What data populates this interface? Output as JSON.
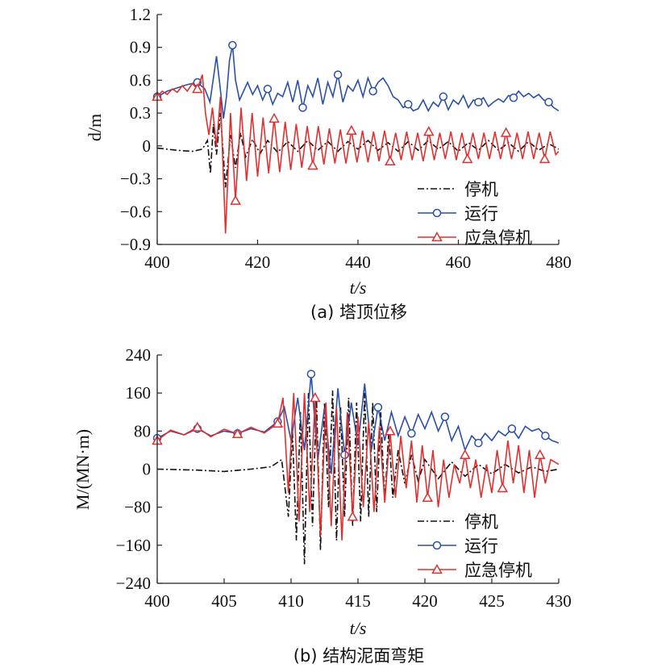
{
  "chart_data": [
    {
      "type": "line",
      "caption": "(a) 塔顶位移",
      "xlabel": "t/s",
      "ylabel": "d/m",
      "xlim": [
        400,
        480
      ],
      "ylim": [
        -0.9,
        1.2
      ],
      "xticks": [
        "400",
        "420",
        "440",
        "460",
        "480"
      ],
      "yticks": [
        "−0.9",
        "−0.6",
        "−0.3",
        "0",
        "0.3",
        "0.6",
        "0.9",
        "1.2"
      ],
      "legend_position": "bottom-right",
      "series": [
        {
          "name": "停机",
          "color": "#111111",
          "style": "dashdot",
          "marker": "none",
          "x": [
            400,
            404,
            407,
            409,
            410,
            410.6,
            411.2,
            411.8,
            412.6,
            413.6,
            414.6,
            415.6,
            416.6,
            417.6,
            419,
            420.5,
            422,
            424,
            426,
            428,
            430,
            432,
            434,
            436,
            438,
            440,
            442,
            444,
            446,
            448,
            450,
            452,
            454,
            456,
            458,
            460,
            462,
            464,
            466,
            468,
            470,
            472,
            474,
            476,
            478,
            480
          ],
          "y": [
            -0.02,
            -0.04,
            -0.05,
            -0.03,
            0.05,
            -0.25,
            0.2,
            -0.08,
            0.3,
            -0.38,
            0.1,
            -0.2,
            0.12,
            -0.1,
            0.06,
            -0.07,
            0.05,
            -0.06,
            0.04,
            -0.05,
            0.05,
            -0.04,
            0.04,
            -0.05,
            0.04,
            -0.03,
            0.05,
            -0.04,
            0.03,
            -0.05,
            0.04,
            -0.04,
            0.05,
            -0.03,
            0.04,
            -0.05,
            0.03,
            -0.04,
            0.05,
            -0.04,
            0.03,
            -0.05,
            0.04,
            -0.04,
            0.02,
            -0.03
          ]
        },
        {
          "name": "运行",
          "color": "#2a4fa8",
          "style": "solid",
          "marker": "circle",
          "x": [
            400,
            402,
            404,
            406,
            408,
            409.5,
            410.5,
            411.2,
            411.8,
            412.5,
            413.2,
            413.8,
            414.4,
            415,
            415.6,
            416.4,
            417.2,
            418,
            419,
            420,
            421,
            422,
            423,
            424,
            425,
            426,
            427,
            428,
            429,
            430,
            431,
            432,
            433,
            434,
            435,
            436,
            437,
            438,
            439,
            440,
            441,
            442,
            443,
            444,
            445,
            446,
            447,
            448,
            449,
            450,
            451,
            452,
            453,
            454,
            455,
            456,
            457,
            458,
            459,
            460,
            461,
            462,
            463,
            464,
            465,
            466,
            467,
            468,
            469,
            470,
            471,
            472,
            473,
            474,
            475,
            476,
            477,
            478,
            479,
            480
          ],
          "y": [
            0.45,
            0.5,
            0.53,
            0.56,
            0.58,
            0.52,
            0.4,
            0.62,
            0.82,
            0.55,
            0.25,
            0.45,
            0.78,
            0.92,
            0.6,
            0.42,
            0.5,
            0.58,
            0.47,
            0.55,
            0.42,
            0.52,
            0.38,
            0.48,
            0.45,
            0.58,
            0.4,
            0.6,
            0.35,
            0.55,
            0.45,
            0.62,
            0.38,
            0.58,
            0.45,
            0.65,
            0.4,
            0.55,
            0.5,
            0.6,
            0.45,
            0.62,
            0.5,
            0.58,
            0.62,
            0.55,
            0.45,
            0.42,
            0.35,
            0.38,
            0.32,
            0.34,
            0.42,
            0.32,
            0.4,
            0.36,
            0.45,
            0.33,
            0.42,
            0.38,
            0.46,
            0.35,
            0.42,
            0.4,
            0.44,
            0.36,
            0.4,
            0.43,
            0.4,
            0.46,
            0.44,
            0.5,
            0.45,
            0.48,
            0.44,
            0.47,
            0.42,
            0.4,
            0.35,
            0.32
          ]
        },
        {
          "name": "应急停机",
          "color": "#e03030",
          "style": "solid",
          "marker": "triangle",
          "x": [
            400,
            401,
            402,
            403,
            404,
            405,
            406,
            407,
            408,
            409,
            409.6,
            410.3,
            411,
            411.8,
            412.6,
            413.6,
            414.6,
            415.6,
            416.7,
            417.8,
            418.9,
            420,
            421.1,
            422.2,
            423.3,
            424.4,
            425.5,
            426.6,
            427.7,
            428.8,
            429.9,
            431,
            432.1,
            433.2,
            434.3,
            435.4,
            436.5,
            437.6,
            438.7,
            439.8,
            440.9,
            442,
            443.1,
            444.2,
            445.3,
            446.4,
            447.5,
            448.6,
            449.7,
            450.8,
            451.9,
            453,
            454.1,
            455.2,
            456.3,
            457.4,
            458.5,
            459.6,
            460.7,
            461.8,
            462.9,
            464,
            465.1,
            466.2,
            467.3,
            468.4,
            469.5,
            470.6,
            471.7,
            472.8,
            473.9,
            475,
            476.1,
            477.2,
            478.3,
            479.4,
            480
          ],
          "y": [
            0.45,
            0.5,
            0.47,
            0.52,
            0.49,
            0.55,
            0.5,
            0.57,
            0.52,
            0.65,
            0.3,
            0.1,
            0.35,
            0.0,
            0.45,
            -0.8,
            0.3,
            -0.5,
            0.35,
            -0.32,
            0.3,
            -0.28,
            0.26,
            -0.25,
            0.25,
            -0.24,
            0.22,
            -0.22,
            0.2,
            -0.2,
            0.18,
            -0.18,
            0.18,
            -0.17,
            0.16,
            -0.16,
            0.15,
            -0.16,
            0.14,
            -0.15,
            0.14,
            -0.15,
            0.13,
            -0.14,
            0.14,
            -0.14,
            0.12,
            -0.13,
            0.13,
            -0.13,
            0.12,
            -0.14,
            0.13,
            -0.13,
            0.12,
            -0.12,
            0.13,
            -0.13,
            0.12,
            -0.12,
            0.12,
            -0.12,
            0.12,
            -0.12,
            0.13,
            -0.12,
            0.12,
            -0.12,
            0.12,
            -0.12,
            0.13,
            -0.12,
            0.12,
            -0.12,
            0.13,
            -0.08,
            -0.05
          ]
        }
      ]
    },
    {
      "type": "line",
      "caption": "(b) 结构泥面弯矩",
      "xlabel": "t/s",
      "ylabel": "M/(MN·m)",
      "xlim": [
        400,
        430
      ],
      "ylim": [
        -240,
        240
      ],
      "xticks": [
        "400",
        "405",
        "410",
        "415",
        "420",
        "425",
        "430"
      ],
      "yticks": [
        "−240",
        "−160",
        "−80",
        "0",
        "80",
        "160",
        "240"
      ],
      "legend_position": "bottom-right",
      "series": [
        {
          "name": "停机",
          "color": "#111111",
          "style": "dashdot",
          "marker": "none",
          "x": [
            400,
            403,
            405,
            407,
            408.5,
            409.3,
            409.8,
            410.1,
            410.4,
            410.7,
            411,
            411.3,
            411.6,
            411.9,
            412.2,
            412.5,
            412.8,
            413.1,
            413.4,
            413.7,
            414,
            414.3,
            414.6,
            414.9,
            415.2,
            415.5,
            415.8,
            416.1,
            416.4,
            416.7,
            417,
            417.3,
            417.6,
            418,
            418.5,
            419,
            419.5,
            420,
            421,
            422,
            423,
            424,
            425,
            426,
            427,
            428,
            429,
            430
          ],
          "y": [
            0,
            -2,
            -5,
            0,
            5,
            20,
            -100,
            80,
            -150,
            120,
            -200,
            160,
            -120,
            150,
            -170,
            140,
            -80,
            165,
            -150,
            130,
            -100,
            150,
            -120,
            140,
            -110,
            160,
            -100,
            140,
            -90,
            120,
            -70,
            80,
            -60,
            40,
            -30,
            30,
            -25,
            20,
            -20,
            15,
            -15,
            10,
            -10,
            10,
            -8,
            5,
            -5,
            0
          ]
        },
        {
          "name": "运行",
          "color": "#2a4fa8",
          "style": "solid",
          "marker": "circle",
          "x": [
            400,
            401,
            402,
            403,
            404,
            405,
            406,
            407,
            408,
            409,
            409.5,
            410,
            410.5,
            411,
            411.5,
            412,
            412.5,
            413,
            413.5,
            414,
            414.5,
            415,
            415.5,
            416,
            416.5,
            417,
            417.5,
            418,
            418.5,
            419,
            419.5,
            420,
            420.5,
            421,
            421.5,
            422,
            422.5,
            423,
            423.5,
            424,
            424.5,
            425,
            425.5,
            426,
            426.5,
            427,
            427.5,
            428,
            428.5,
            429,
            429.5,
            430
          ],
          "y": [
            65,
            80,
            72,
            85,
            70,
            80,
            75,
            85,
            78,
            100,
            130,
            60,
            150,
            40,
            200,
            20,
            130,
            -10,
            170,
            30,
            140,
            50,
            180,
            40,
            130,
            60,
            120,
            70,
            110,
            75,
            115,
            85,
            120,
            80,
            110,
            60,
            90,
            40,
            70,
            55,
            75,
            60,
            80,
            70,
            85,
            65,
            90,
            80,
            85,
            70,
            60,
            55
          ]
        },
        {
          "name": "应急停机",
          "color": "#e03030",
          "style": "solid",
          "marker": "triangle",
          "x": [
            400,
            401,
            402,
            403,
            404,
            405,
            406,
            407,
            408,
            409,
            409.4,
            409.8,
            410.2,
            410.6,
            411,
            411.4,
            411.8,
            412.2,
            412.6,
            413,
            413.4,
            413.8,
            414.2,
            414.6,
            415,
            415.4,
            415.8,
            416.2,
            416.6,
            417,
            417.4,
            417.8,
            418.2,
            418.6,
            419,
            419.4,
            419.8,
            420.2,
            420.6,
            421,
            421.4,
            421.8,
            422.2,
            422.6,
            423,
            423.4,
            423.8,
            424.2,
            424.6,
            425,
            425.4,
            425.8,
            426.2,
            426.6,
            427,
            427.4,
            427.8,
            428.2,
            428.6,
            429,
            429.4,
            430
          ],
          "y": [
            60,
            82,
            72,
            88,
            68,
            84,
            74,
            88,
            76,
            96,
            150,
            -50,
            160,
            -110,
            160,
            -90,
            150,
            -140,
            140,
            -120,
            130,
            -150,
            120,
            -100,
            110,
            -80,
            100,
            -90,
            90,
            -70,
            80,
            -60,
            70,
            -40,
            60,
            -70,
            50,
            -60,
            40,
            -80,
            20,
            -60,
            10,
            -30,
            30,
            -40,
            20,
            -60,
            10,
            -50,
            40,
            -40,
            60,
            -30,
            50,
            -50,
            40,
            -60,
            30,
            -30,
            20,
            10
          ]
        }
      ]
    }
  ]
}
